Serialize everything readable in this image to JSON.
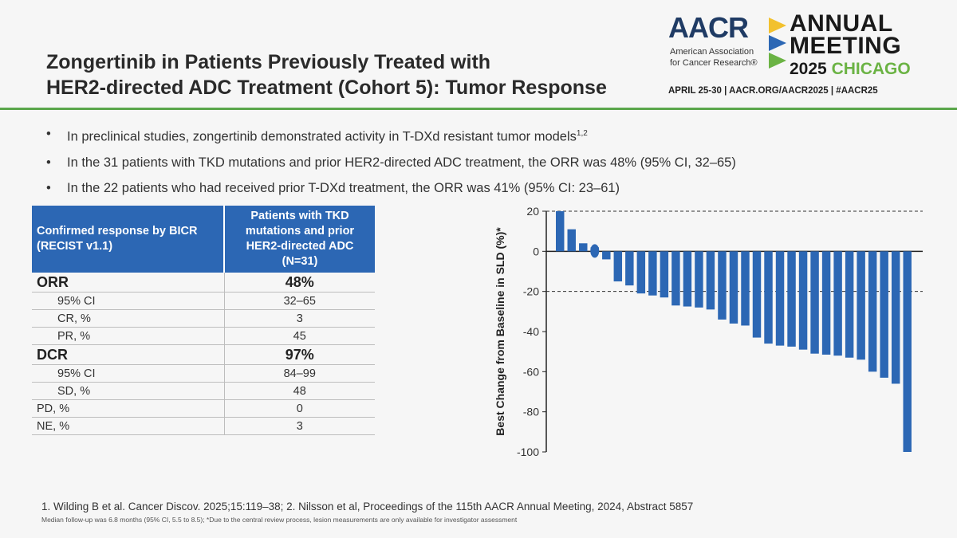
{
  "header": {
    "title_line1": "Zongertinib in Patients Previously Treated with",
    "title_line2": "HER2-directed ADC Treatment (Cohort 5): Tumor Response"
  },
  "logo": {
    "aacr_text": "AACR",
    "subtitle_line1": "American Association",
    "subtitle_line2": "for Cancer Research®",
    "annual": "ANNUAL",
    "meeting": "MEETING",
    "year": "2025",
    "city": "CHICAGO",
    "info": "APRIL 25-30 | AACR.ORG/AACR2025 | #AACR25"
  },
  "bullets": [
    {
      "text": "In preclinical studies, zongertinib demonstrated activity in T-DXd resistant tumor models",
      "sup": "1,2"
    },
    {
      "text": "In the 31 patients with TKD mutations and prior HER2-directed ADC treatment, the ORR was 48% (95% CI, 32–65)",
      "sup": ""
    },
    {
      "text": "In the 22 patients who had received prior T-DXd treatment, the ORR was 41% (95% CI: 23–61)",
      "sup": ""
    }
  ],
  "table": {
    "header_col1": "Confirmed response by BICR (RECIST v1.1)",
    "header_col2": "Patients with TKD mutations and prior HER2-directed ADC (N=31)",
    "rows": [
      {
        "label": "ORR",
        "value": "48%"
      },
      {
        "label": "95% CI",
        "value": "32–65"
      },
      {
        "label": "CR, %",
        "value": "3"
      },
      {
        "label": "PR, %",
        "value": "45"
      },
      {
        "label": "DCR",
        "value": "97%"
      },
      {
        "label": "95% CI",
        "value": "84–99"
      },
      {
        "label": "SD, %",
        "value": "48"
      },
      {
        "label": "PD, %",
        "value": "0"
      },
      {
        "label": "NE, %",
        "value": "3"
      }
    ]
  },
  "chart_data": {
    "type": "bar",
    "ylabel": "Best Change from Baseline in SLD (%)*",
    "ylim": [
      -100,
      20
    ],
    "yticks": [
      20,
      0,
      -20,
      -40,
      -60,
      -80,
      -100
    ],
    "reference_lines": [
      20,
      -20
    ],
    "bar_color": "#2c67b4",
    "values": [
      20,
      11,
      4,
      2,
      -4,
      -15,
      -17,
      -21,
      -22,
      -23,
      -27,
      -27.5,
      -28,
      -29,
      -34,
      -36,
      -37,
      -43,
      -46,
      -47,
      -47.5,
      -49,
      -51,
      -51.5,
      -52,
      -53,
      -54,
      -60,
      -63,
      -66,
      -100
    ],
    "marker_index": 3,
    "grid": false
  },
  "footer": {
    "reference": "1. Wilding B et al. Cancer Discov. 2025;15:119–38; 2. Nilsson et al, Proceedings of the 115th AACR Annual Meeting, 2024, Abstract 5857",
    "note": "Median follow-up was 6.8 months (95% CI, 5.5 to 8.5); *Due to the central review process, lesion measurements are only available for investigator assessment"
  }
}
